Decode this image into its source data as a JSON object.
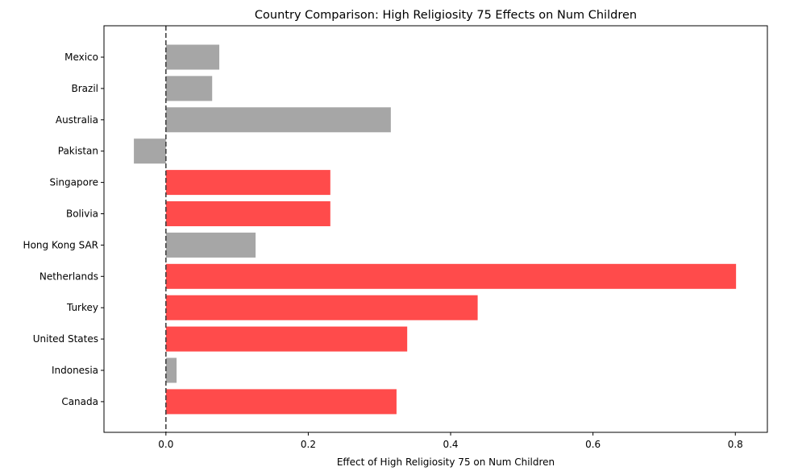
{
  "chart_data": {
    "type": "bar",
    "orientation": "horizontal",
    "title": "Country Comparison: High Religiosity 75 Effects on Num Children",
    "xlabel": "Effect of High Religiosity 75 on Num Children",
    "ylabel": "",
    "xlim": [
      -0.087,
      0.845
    ],
    "xticks": [
      0.0,
      0.2,
      0.4,
      0.6,
      0.8
    ],
    "xtick_labels": [
      "0.0",
      "0.2",
      "0.4",
      "0.6",
      "0.8"
    ],
    "reference_line": {
      "x": 0.0,
      "style": "dashed"
    },
    "grid": false,
    "colors": {
      "significant": "#ff4b4b",
      "not_significant": "#a6a6a6",
      "reference_line": "#444444"
    },
    "categories": [
      "Mexico",
      "Brazil",
      "Australia",
      "Pakistan",
      "Singapore",
      "Bolivia",
      "Hong Kong SAR",
      "Netherlands",
      "Turkey",
      "United States",
      "Indonesia",
      "Canada"
    ],
    "values": [
      0.075,
      0.065,
      0.316,
      -0.045,
      0.231,
      0.231,
      0.126,
      0.801,
      0.438,
      0.339,
      0.015,
      0.324
    ],
    "significant": [
      false,
      false,
      false,
      false,
      true,
      true,
      false,
      true,
      true,
      true,
      false,
      true
    ]
  }
}
